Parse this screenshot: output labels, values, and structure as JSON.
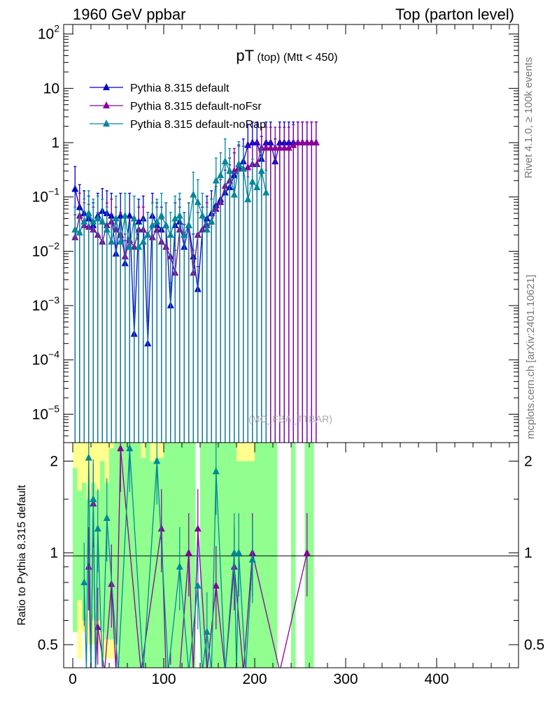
{
  "header": {
    "left": "1960 GeV ppbar",
    "right": "Top (parton level)"
  },
  "side_labels": {
    "rivet": "Rivet 4.1.0, ≥ 100k events",
    "mcplots": "mcplots.cern.ch [arXiv:2401.10621]"
  },
  "watermark": "(MC_FBA_TTBAR)",
  "chart_data": [
    {
      "type": "line",
      "title": "pT (top) (Mtt < 450)",
      "title_main": "pT",
      "title_sub": "(top) (Mtt < 450)",
      "yscale": "log",
      "xlim": [
        -10,
        490
      ],
      "ylim": [
        3e-06,
        150
      ],
      "y_ticks": [
        {
          "base": "10",
          "exp": "2"
        },
        {
          "label": "10"
        },
        {
          "label": "1"
        },
        {
          "base": "10",
          "exp": "−1"
        },
        {
          "base": "10",
          "exp": "−2"
        },
        {
          "base": "10",
          "exp": "−3"
        },
        {
          "base": "10",
          "exp": "−4"
        },
        {
          "base": "10",
          "exp": "−5"
        }
      ],
      "y_tick_values": [
        100,
        10,
        1,
        0.1,
        0.01,
        0.001,
        0.0001,
        1e-05
      ],
      "legend_position": "top-left",
      "series": [
        {
          "name": "Pythia 8.315 default",
          "color": "#0000cc",
          "x": [
            2.5,
            7.5,
            12.5,
            17.5,
            22.5,
            27.5,
            32.5,
            37.5,
            42.5,
            47.5,
            52.5,
            57.5,
            62.5,
            67.5,
            72.5,
            77.5,
            82.5,
            87.5,
            92.5,
            97.5,
            102.5,
            107.5,
            112.5,
            117.5,
            122.5,
            127.5,
            132.5,
            137.5,
            142.5,
            147.5,
            152.5,
            157.5,
            162.5,
            167.5,
            172.5,
            177.5,
            182.5,
            187.5,
            192.5,
            197.5,
            202.5,
            207.5,
            212.5,
            217.5,
            222.5,
            227.5,
            232.5,
            237.5,
            242.5,
            247.5,
            252.5,
            257.5,
            262.5,
            267.5
          ],
          "y": [
            0.14,
            0.065,
            0.05,
            0.04,
            0.03,
            0.045,
            0.055,
            0.05,
            0.045,
            0.009,
            0.045,
            0.006,
            0.045,
            0.0003,
            0.035,
            0.04,
            0.0002,
            0.045,
            0.03,
            0.025,
            0.03,
            0.001,
            0.03,
            0.035,
            0.012,
            0.03,
            0.008,
            0.002,
            0.025,
            0.04,
            0.05,
            0.07,
            0.09,
            0.12,
            0.15,
            0.25,
            0.35,
            0.45,
            0.9,
            1.0,
            1.0,
            0.5,
            1.0,
            1.0,
            0.45,
            1.0,
            1.0,
            1.0,
            1.0,
            1.0,
            1.0,
            1.0,
            1.0,
            1.0
          ]
        },
        {
          "name": "Pythia 8.315 default-noFsr",
          "color": "#880099",
          "x": [
            2.5,
            7.5,
            12.5,
            17.5,
            22.5,
            27.5,
            32.5,
            37.5,
            42.5,
            47.5,
            52.5,
            57.5,
            62.5,
            67.5,
            72.5,
            77.5,
            82.5,
            87.5,
            92.5,
            97.5,
            102.5,
            107.5,
            112.5,
            117.5,
            122.5,
            127.5,
            132.5,
            137.5,
            142.5,
            147.5,
            152.5,
            157.5,
            162.5,
            167.5,
            172.5,
            177.5,
            182.5,
            187.5,
            192.5,
            197.5,
            202.5,
            207.5,
            212.5,
            217.5,
            222.5,
            227.5,
            232.5,
            237.5,
            242.5,
            247.5,
            252.5,
            257.5,
            262.5,
            267.5
          ],
          "y": [
            0.018,
            0.045,
            0.03,
            0.028,
            0.025,
            0.02,
            0.015,
            0.03,
            0.035,
            0.025,
            0.02,
            0.008,
            0.016,
            0.012,
            0.025,
            0.025,
            0.02,
            0.018,
            0.025,
            0.015,
            0.012,
            0.008,
            0.004,
            0.025,
            0.02,
            0.03,
            0.004,
            0.02,
            0.025,
            0.03,
            0.035,
            0.06,
            0.08,
            0.16,
            0.2,
            0.3,
            0.33,
            0.33,
            0.35,
            0.4,
            0.4,
            0.8,
            0.8,
            0.8,
            0.8,
            0.8,
            0.8,
            0.8,
            0.9,
            1.0,
            1.0,
            1.0,
            1.0,
            1.0
          ]
        },
        {
          "name": "Pythia 8.315 default-noRap",
          "color": "#008899",
          "x": [
            2.5,
            7.5,
            12.5,
            17.5,
            22.5,
            27.5,
            32.5,
            37.5,
            42.5,
            47.5,
            52.5,
            57.5,
            62.5,
            67.5,
            72.5,
            77.5,
            82.5,
            87.5,
            92.5,
            97.5,
            102.5,
            107.5,
            112.5,
            117.5,
            122.5,
            127.5,
            132.5,
            137.5,
            142.5,
            147.5,
            152.5,
            157.5,
            162.5,
            167.5,
            172.5,
            177.5,
            182.5,
            187.5,
            192.5,
            197.5,
            202.5,
            207.5,
            212.5
          ],
          "y": [
            0.025,
            0.022,
            0.035,
            0.05,
            0.035,
            0.04,
            0.035,
            0.025,
            0.015,
            0.04,
            0.015,
            0.045,
            0.012,
            0.04,
            0.012,
            0.015,
            0.02,
            0.03,
            0.035,
            0.045,
            0.03,
            0.02,
            0.04,
            0.045,
            0.02,
            0.03,
            0.11,
            0.08,
            0.045,
            0.025,
            0.035,
            0.2,
            0.25,
            0.45,
            0.3,
            0.11,
            0.4,
            0.33,
            0.09,
            0.19,
            0.15,
            0.3,
            0.12
          ]
        }
      ]
    },
    {
      "type": "line",
      "title": "Ratio to Pythia 8.315 default",
      "ylabel": "Ratio to Pythia 8.315 default",
      "yscale": "log",
      "xlim": [
        -10,
        490
      ],
      "ylim": [
        0.42,
        2.3
      ],
      "x_ticks": [
        "0",
        "100",
        "200",
        "300",
        "400"
      ],
      "x_tick_values": [
        0,
        100,
        200,
        300,
        400
      ],
      "y_ticks": [
        "2",
        "1",
        "0.5"
      ],
      "y_tick_values": [
        2,
        1,
        0.5
      ],
      "reference_line": 1.0,
      "band_colors": {
        "inner": "#90ff90",
        "outer": "#ffff90"
      },
      "series": [
        {
          "name": "Pythia 8.315 default-noFsr",
          "color": "#880099",
          "x": [
            17.5,
            22.5,
            27.5,
            42.5,
            52.5,
            97.5,
            107.5,
            127.5,
            137.5,
            157.5,
            177.5,
            197.5,
            257.5
          ],
          "y": [
            0.9,
            1.45,
            0.57,
            0.79,
            2.2,
            1.2,
            0.35,
            1.0,
            1.2,
            0.78,
            0.9,
            1.0,
            1.0
          ]
        },
        {
          "name": "Pythia 8.315 default-noRap",
          "color": "#008899",
          "x": [
            12.5,
            17.5,
            22.5,
            27.5,
            37.5,
            62.5,
            92.5,
            117.5,
            137.5,
            147.5,
            157.5,
            177.5,
            182.5,
            197.5
          ],
          "y": [
            0.8,
            2.05,
            1.5,
            1.2,
            1.3,
            2.2,
            2.0,
            0.9,
            0.78,
            0.55,
            1.85,
            1.0,
            1.0,
            0.95
          ]
        }
      ]
    }
  ]
}
